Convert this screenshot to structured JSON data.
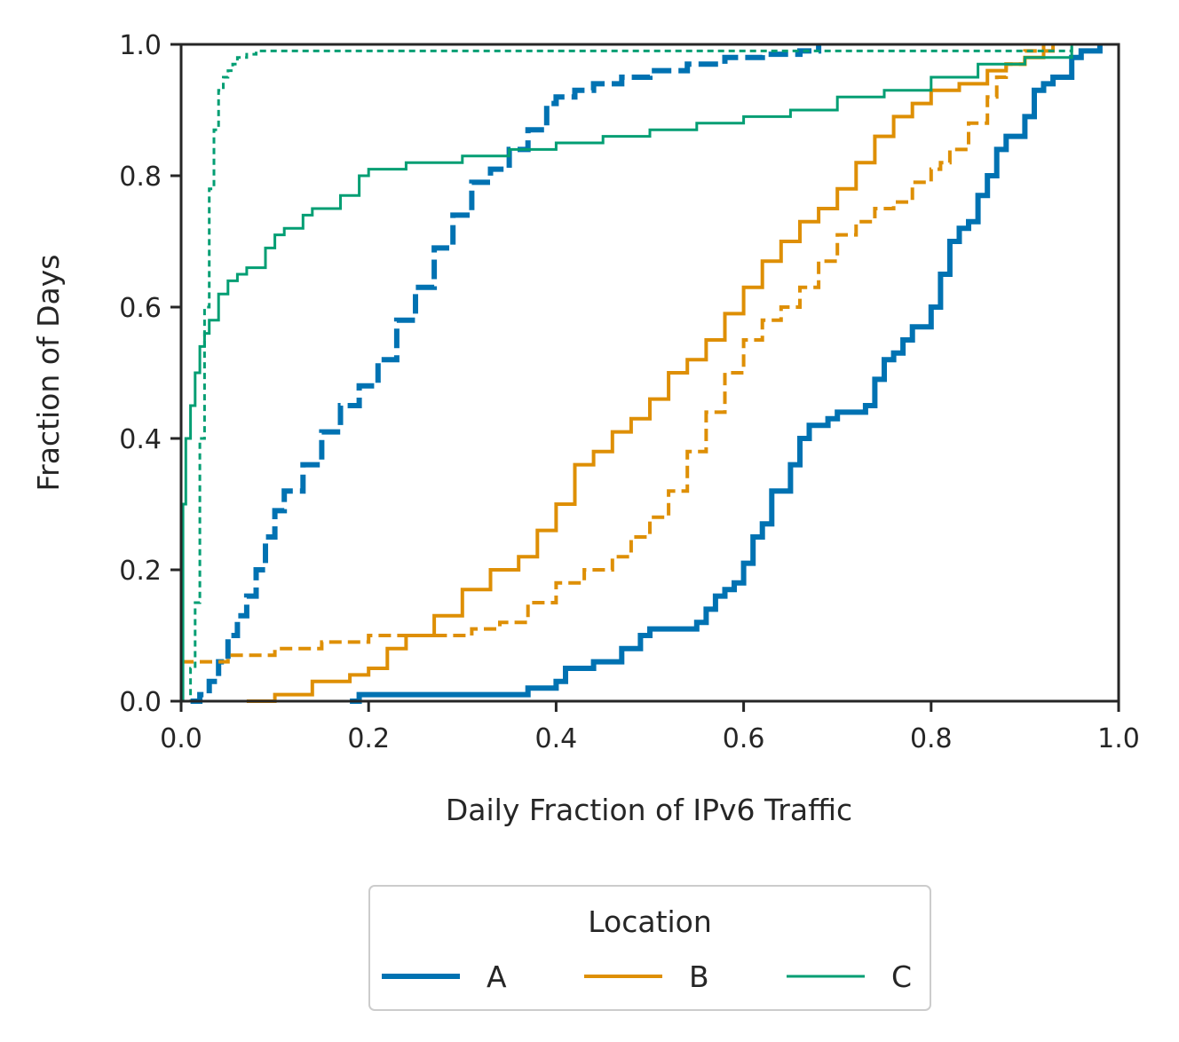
{
  "chart_data": {
    "type": "line",
    "title": "",
    "xlabel": "Daily Fraction of IPv6 Traffic",
    "ylabel": "Fraction of Days",
    "xlim": [
      0.0,
      1.0
    ],
    "ylim": [
      0.0,
      1.0
    ],
    "xticks": [
      "0.0",
      "0.2",
      "0.4",
      "0.6",
      "0.8",
      "1.0"
    ],
    "yticks": [
      "0.0",
      "0.2",
      "0.4",
      "0.6",
      "0.8",
      "1.0"
    ],
    "legend": {
      "title": "Location",
      "placement": "below",
      "entries": [
        {
          "label": "A",
          "color": "#0072b2"
        },
        {
          "label": "B",
          "color": "#de8f05"
        },
        {
          "label": "C",
          "color": "#029e73"
        }
      ]
    },
    "series": [
      {
        "name": "A (solid)",
        "location": "A",
        "style": "solid",
        "color": "#0072b2",
        "x": [
          0.18,
          0.19,
          0.36,
          0.37,
          0.4,
          0.41,
          0.44,
          0.47,
          0.49,
          0.5,
          0.53,
          0.55,
          0.56,
          0.57,
          0.58,
          0.59,
          0.6,
          0.61,
          0.62,
          0.63,
          0.65,
          0.66,
          0.67,
          0.69,
          0.7,
          0.73,
          0.74,
          0.75,
          0.76,
          0.77,
          0.78,
          0.8,
          0.81,
          0.82,
          0.83,
          0.84,
          0.85,
          0.86,
          0.87,
          0.88,
          0.9,
          0.91,
          0.92,
          0.93,
          0.95,
          0.96,
          0.98
        ],
        "y": [
          0.0,
          0.01,
          0.01,
          0.02,
          0.03,
          0.05,
          0.06,
          0.08,
          0.1,
          0.11,
          0.11,
          0.12,
          0.14,
          0.16,
          0.17,
          0.18,
          0.21,
          0.25,
          0.27,
          0.32,
          0.36,
          0.4,
          0.42,
          0.43,
          0.44,
          0.45,
          0.49,
          0.52,
          0.53,
          0.55,
          0.57,
          0.6,
          0.65,
          0.7,
          0.72,
          0.73,
          0.77,
          0.8,
          0.84,
          0.86,
          0.89,
          0.93,
          0.94,
          0.95,
          0.98,
          0.99,
          1.0
        ]
      },
      {
        "name": "A (dashed)",
        "location": "A",
        "style": "dashed",
        "color": "#0072b2",
        "x": [
          0.01,
          0.02,
          0.03,
          0.04,
          0.05,
          0.06,
          0.07,
          0.08,
          0.09,
          0.1,
          0.11,
          0.13,
          0.15,
          0.17,
          0.19,
          0.21,
          0.23,
          0.25,
          0.27,
          0.29,
          0.31,
          0.33,
          0.35,
          0.37,
          0.39,
          0.4,
          0.42,
          0.44,
          0.47,
          0.5,
          0.54,
          0.58,
          0.62,
          0.66,
          0.68
        ],
        "y": [
          0.0,
          0.01,
          0.03,
          0.06,
          0.1,
          0.13,
          0.16,
          0.2,
          0.25,
          0.29,
          0.32,
          0.36,
          0.41,
          0.45,
          0.48,
          0.52,
          0.58,
          0.63,
          0.69,
          0.74,
          0.79,
          0.81,
          0.84,
          0.87,
          0.91,
          0.92,
          0.93,
          0.94,
          0.95,
          0.96,
          0.97,
          0.98,
          0.985,
          0.99,
          1.0
        ]
      },
      {
        "name": "B (solid)",
        "location": "B",
        "style": "solid",
        "color": "#de8f05",
        "x": [
          0.07,
          0.1,
          0.14,
          0.18,
          0.2,
          0.22,
          0.24,
          0.27,
          0.3,
          0.33,
          0.36,
          0.38,
          0.4,
          0.42,
          0.44,
          0.46,
          0.48,
          0.5,
          0.52,
          0.54,
          0.56,
          0.58,
          0.6,
          0.62,
          0.64,
          0.66,
          0.68,
          0.7,
          0.72,
          0.74,
          0.76,
          0.78,
          0.8,
          0.83,
          0.86,
          0.88,
          0.9,
          0.92,
          0.93
        ],
        "y": [
          0.0,
          0.01,
          0.03,
          0.04,
          0.05,
          0.08,
          0.1,
          0.13,
          0.17,
          0.2,
          0.22,
          0.26,
          0.3,
          0.36,
          0.38,
          0.41,
          0.43,
          0.46,
          0.5,
          0.52,
          0.55,
          0.59,
          0.63,
          0.67,
          0.7,
          0.73,
          0.75,
          0.78,
          0.82,
          0.86,
          0.89,
          0.91,
          0.93,
          0.94,
          0.96,
          0.97,
          0.98,
          0.99,
          1.0
        ]
      },
      {
        "name": "B (dashed)",
        "location": "B",
        "style": "dashed",
        "color": "#de8f05",
        "x": [
          0.0,
          0.05,
          0.1,
          0.15,
          0.2,
          0.25,
          0.31,
          0.34,
          0.37,
          0.4,
          0.43,
          0.46,
          0.48,
          0.5,
          0.52,
          0.54,
          0.56,
          0.58,
          0.6,
          0.62,
          0.64,
          0.66,
          0.68,
          0.7,
          0.72,
          0.74,
          0.76,
          0.78,
          0.8,
          0.81,
          0.82,
          0.84,
          0.86,
          0.87,
          0.88,
          0.9,
          0.92
        ],
        "y": [
          0.06,
          0.07,
          0.08,
          0.09,
          0.1,
          0.1,
          0.11,
          0.12,
          0.15,
          0.18,
          0.2,
          0.22,
          0.25,
          0.28,
          0.32,
          0.38,
          0.44,
          0.5,
          0.55,
          0.58,
          0.6,
          0.63,
          0.67,
          0.71,
          0.73,
          0.75,
          0.76,
          0.79,
          0.81,
          0.82,
          0.84,
          0.88,
          0.92,
          0.95,
          0.97,
          0.99,
          1.0
        ]
      },
      {
        "name": "C (solid)",
        "location": "C",
        "style": "solid",
        "color": "#029e73",
        "x": [
          0.0,
          0.002,
          0.005,
          0.01,
          0.015,
          0.02,
          0.025,
          0.03,
          0.04,
          0.05,
          0.06,
          0.07,
          0.09,
          0.1,
          0.11,
          0.13,
          0.14,
          0.15,
          0.17,
          0.19,
          0.2,
          0.24,
          0.3,
          0.35,
          0.4,
          0.45,
          0.5,
          0.55,
          0.6,
          0.65,
          0.7,
          0.75,
          0.8,
          0.85,
          0.9,
          0.95
        ],
        "y": [
          0.0,
          0.3,
          0.4,
          0.45,
          0.5,
          0.54,
          0.56,
          0.58,
          0.62,
          0.64,
          0.65,
          0.66,
          0.69,
          0.71,
          0.72,
          0.74,
          0.75,
          0.75,
          0.77,
          0.8,
          0.81,
          0.82,
          0.83,
          0.84,
          0.85,
          0.86,
          0.87,
          0.88,
          0.89,
          0.9,
          0.92,
          0.93,
          0.95,
          0.97,
          0.98,
          1.0
        ]
      },
      {
        "name": "C (dashed)",
        "location": "C",
        "style": "dashed",
        "color": "#029e73",
        "x": [
          0.005,
          0.01,
          0.015,
          0.02,
          0.025,
          0.03,
          0.035,
          0.04,
          0.045,
          0.05,
          0.055,
          0.06,
          0.07,
          0.08,
          0.1,
          0.2,
          0.4,
          0.6,
          0.8,
          0.95
        ],
        "y": [
          0.0,
          0.05,
          0.15,
          0.4,
          0.6,
          0.78,
          0.87,
          0.93,
          0.95,
          0.96,
          0.97,
          0.98,
          0.985,
          0.99,
          0.99,
          0.99,
          0.99,
          0.99,
          0.99,
          1.0
        ]
      }
    ]
  }
}
